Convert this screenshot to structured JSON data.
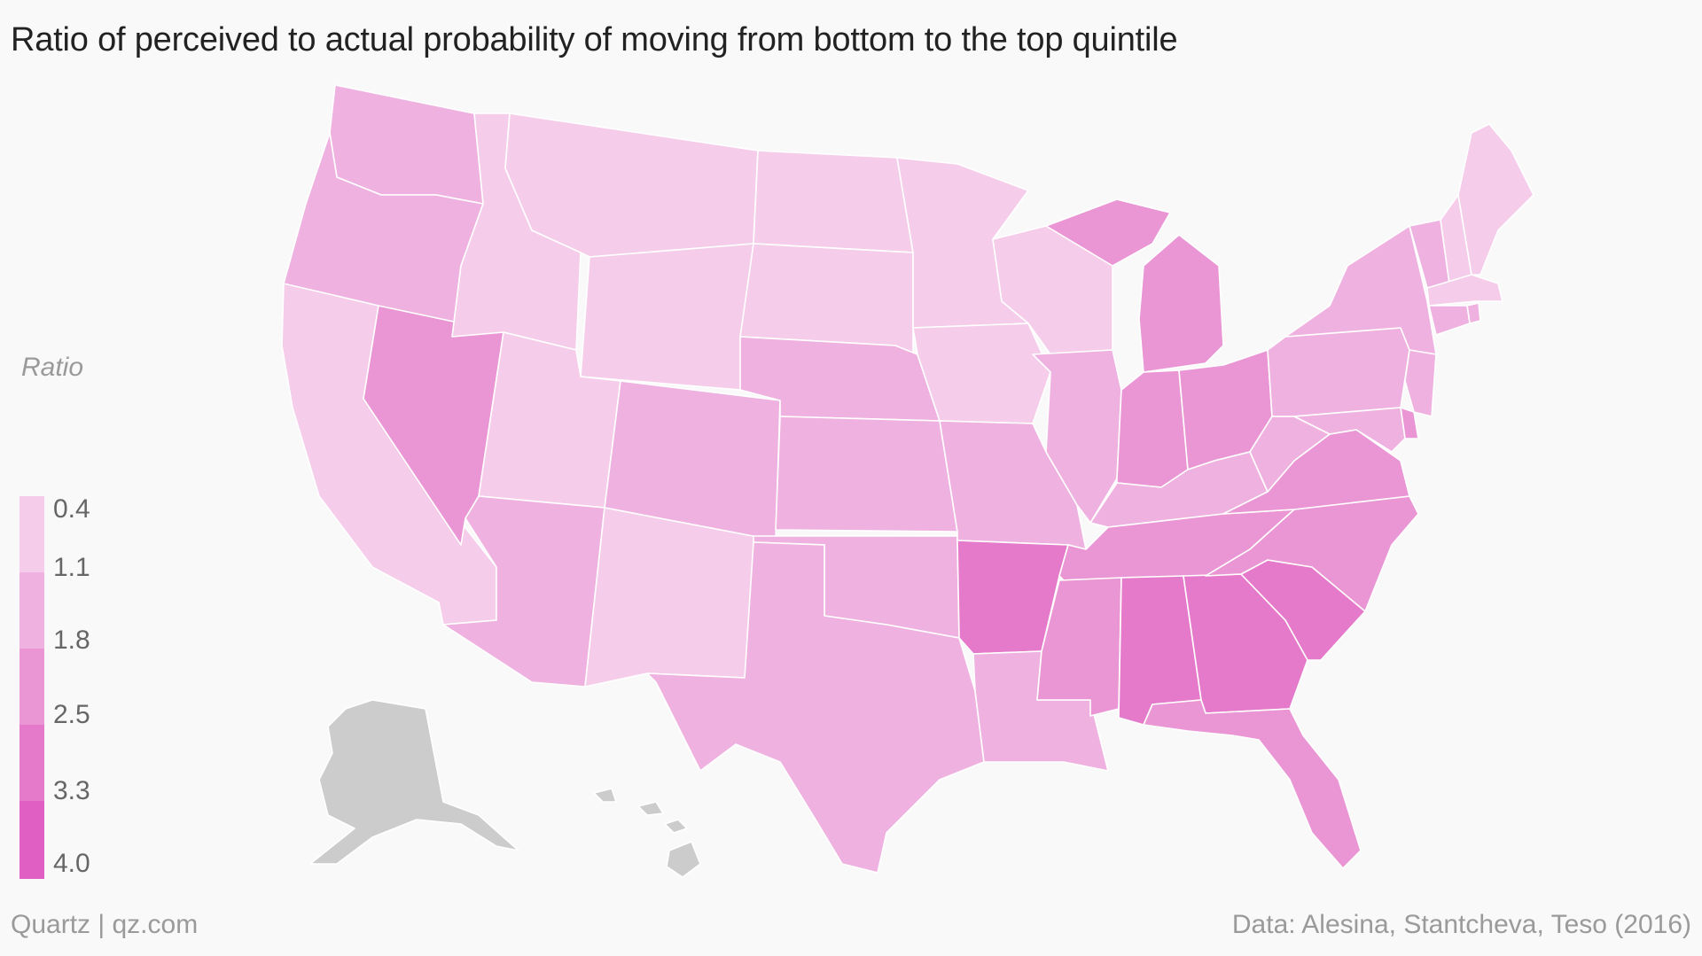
{
  "title": "Ratio of perceived to actual probability of moving from bottom to the top quintile",
  "legend": {
    "title": "Ratio",
    "ticks": [
      "0.4",
      "1.1",
      "1.8",
      "2.5",
      "3.3",
      "4.0"
    ],
    "colors": [
      "#f5cdeb",
      "#efb2e0",
      "#ea96d4",
      "#e57acb",
      "#e05fc2",
      "#dc43b8"
    ]
  },
  "no_data_color": "#cccccc",
  "source": "Data: Alesina, Stantcheva, Teso (2016)",
  "credit": "Quartz | qz.com",
  "chart_data": {
    "type": "choropleth",
    "variable": "Ratio",
    "scale": [
      0.4,
      1.1,
      1.8,
      2.5,
      3.3,
      4.0
    ],
    "states": [
      {
        "state": "WA",
        "bin": 1
      },
      {
        "state": "OR",
        "bin": 1
      },
      {
        "state": "CA",
        "bin": 0
      },
      {
        "state": "NV",
        "bin": 2
      },
      {
        "state": "ID",
        "bin": 0
      },
      {
        "state": "MT",
        "bin": 0
      },
      {
        "state": "WY",
        "bin": 0
      },
      {
        "state": "UT",
        "bin": 0
      },
      {
        "state": "AZ",
        "bin": 1
      },
      {
        "state": "CO",
        "bin": 1
      },
      {
        "state": "NM",
        "bin": 0
      },
      {
        "state": "ND",
        "bin": 0
      },
      {
        "state": "SD",
        "bin": 0
      },
      {
        "state": "NE",
        "bin": 1
      },
      {
        "state": "KS",
        "bin": 1
      },
      {
        "state": "OK",
        "bin": 1
      },
      {
        "state": "TX",
        "bin": 1
      },
      {
        "state": "MN",
        "bin": 0
      },
      {
        "state": "IA",
        "bin": 0
      },
      {
        "state": "MO",
        "bin": 1
      },
      {
        "state": "AR",
        "bin": 3
      },
      {
        "state": "LA",
        "bin": 1
      },
      {
        "state": "WI",
        "bin": 0
      },
      {
        "state": "IL",
        "bin": 1
      },
      {
        "state": "MI",
        "bin": 2
      },
      {
        "state": "IN",
        "bin": 2
      },
      {
        "state": "OH",
        "bin": 2
      },
      {
        "state": "KY",
        "bin": 1
      },
      {
        "state": "TN",
        "bin": 2
      },
      {
        "state": "MS",
        "bin": 2
      },
      {
        "state": "AL",
        "bin": 3
      },
      {
        "state": "GA",
        "bin": 3
      },
      {
        "state": "FL",
        "bin": 2
      },
      {
        "state": "SC",
        "bin": 3
      },
      {
        "state": "NC",
        "bin": 2
      },
      {
        "state": "VA",
        "bin": 2
      },
      {
        "state": "WV",
        "bin": 1
      },
      {
        "state": "PA",
        "bin": 1
      },
      {
        "state": "NY",
        "bin": 1
      },
      {
        "state": "VT",
        "bin": 1
      },
      {
        "state": "NH",
        "bin": 0
      },
      {
        "state": "ME",
        "bin": 0
      },
      {
        "state": "MA",
        "bin": 0
      },
      {
        "state": "RI",
        "bin": 1
      },
      {
        "state": "CT",
        "bin": 1
      },
      {
        "state": "NJ",
        "bin": 1
      },
      {
        "state": "DE",
        "bin": 2
      },
      {
        "state": "MD",
        "bin": 1
      },
      {
        "state": "AK",
        "bin": null
      },
      {
        "state": "HI",
        "bin": null
      }
    ]
  }
}
